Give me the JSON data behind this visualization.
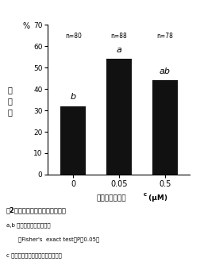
{
  "categories": [
    "0",
    "0.05",
    "0.5"
  ],
  "values": [
    32,
    54,
    44
  ],
  "n_labels": [
    "n=80",
    "n=88",
    "n=78"
  ],
  "sig_labels": [
    "b",
    "a",
    "ab"
  ],
  "bar_color": "#111111",
  "ylim": [
    0,
    70
  ],
  "yticks": [
    0,
    10,
    20,
    30,
    40,
    50,
    60,
    70
  ],
  "ylabel": "成\n熟\n率",
  "percent_label": "%",
  "xlabel_main": "デキサメタゾン",
  "xlabel_sup": "c",
  "xlabel_unit": " (μM)",
  "caption_line1": "図2　体外発育卵母細胞の成熟率",
  "caption_line2": "a,b 異符号間に有意差あり",
  "caption_line3": "（Fisher's  exact test、P＜0.05）",
  "caption_line4": "c 発育のための培養液への添加濃度",
  "fig_bg": "#ffffff",
  "plot_bg": "#ffffff"
}
